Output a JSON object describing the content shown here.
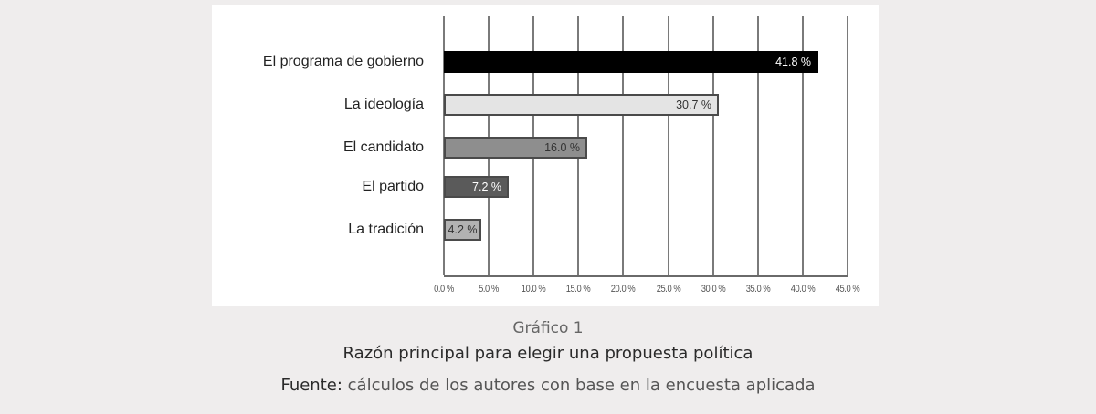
{
  "chart_data": {
    "type": "bar",
    "orientation": "horizontal",
    "categories": [
      "El programa de gobierno",
      "La ideología",
      "El candidato",
      "El partido",
      "La tradición"
    ],
    "values": [
      41.8,
      30.7,
      16.0,
      7.2,
      4.2
    ],
    "value_labels": [
      "41.8 %",
      "30.7 %",
      "16.0 %",
      "7.2 %",
      "4.2 %"
    ],
    "bar_colors": [
      "#000000",
      "#e4e4e4",
      "#8e8e8e",
      "#5a5a5a",
      "#b2b2b2"
    ],
    "label_colors": [
      "#ffffff",
      "#333333",
      "#333333",
      "#ffffff",
      "#333333"
    ],
    "x_ticks": [
      "0.0 %",
      "5.0 %",
      "10.0 %",
      "15.0 %",
      "20.0 %",
      "25.0 %",
      "30.0 %",
      "35.0 %",
      "40.0 %",
      "45.0 %"
    ],
    "xlim": [
      0,
      45
    ],
    "xlabel": "",
    "ylabel": "",
    "grid": true,
    "legend": null,
    "title": "Razón principal para elegir una propuesta política"
  },
  "caption": {
    "figure_number": "Gráfico 1",
    "title": "Razón principal para elegir una propuesta política",
    "source_label": "Fuente:",
    "source_text": " cálculos de los autores con base en la encuesta aplicada"
  }
}
